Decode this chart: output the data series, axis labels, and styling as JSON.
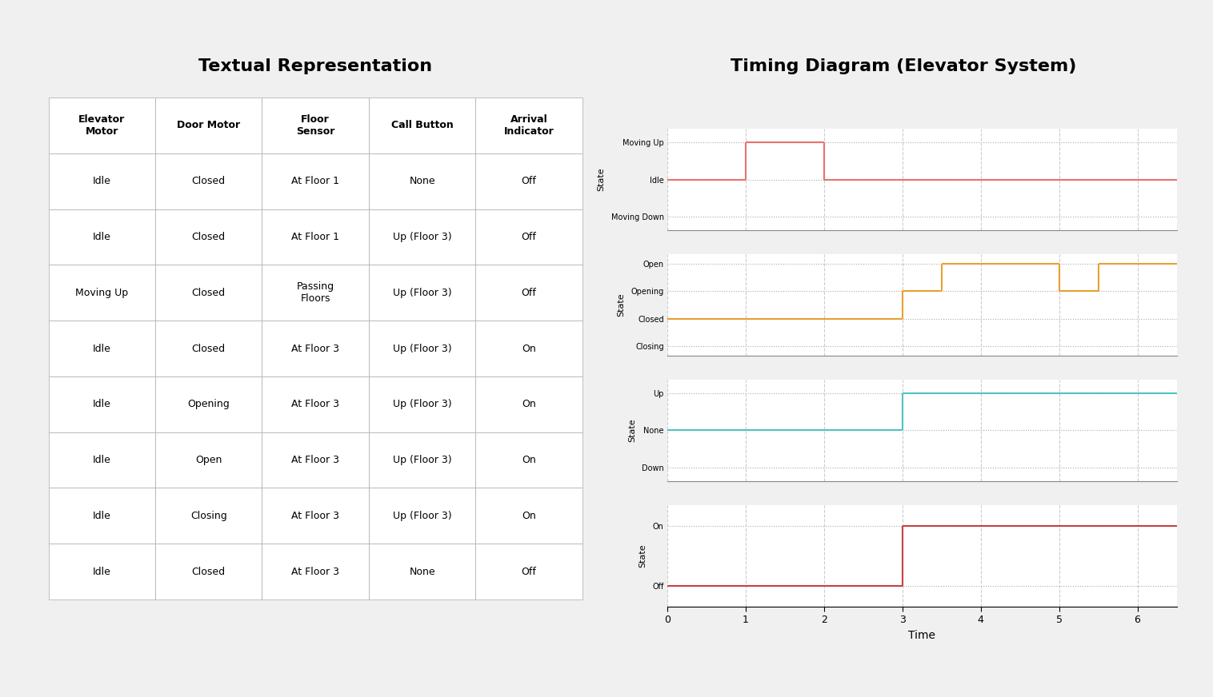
{
  "title_left": "Textual Representation",
  "title_right": "Timing Diagram (Elevator System)",
  "table_headers": [
    "Elevator\nMotor",
    "Door Motor",
    "Floor\nSensor",
    "Call Button",
    "Arrival\nIndicator"
  ],
  "table_rows": [
    [
      "Idle",
      "Closed",
      "At Floor 1",
      "None",
      "Off"
    ],
    [
      "Idle",
      "Closed",
      "At Floor 1",
      "Up (Floor 3)",
      "Off"
    ],
    [
      "Moving Up",
      "Closed",
      "Passing\nFloors",
      "Up (Floor 3)",
      "Off"
    ],
    [
      "Idle",
      "Closed",
      "At Floor 3",
      "Up (Floor 3)",
      "On"
    ],
    [
      "Idle",
      "Opening",
      "At Floor 3",
      "Up (Floor 3)",
      "On"
    ],
    [
      "Idle",
      "Open",
      "At Floor 3",
      "Up (Floor 3)",
      "On"
    ],
    [
      "Idle",
      "Closing",
      "At Floor 3",
      "Up (Floor 3)",
      "On"
    ],
    [
      "Idle",
      "Closed",
      "At Floor 3",
      "None",
      "Off"
    ]
  ],
  "timing": {
    "time_range": [
      0,
      6.5
    ],
    "time_ticks": [
      0,
      1,
      2,
      3,
      4,
      5,
      6
    ],
    "subplot1": {
      "label": "State",
      "yticks": [
        "Moving Down",
        "Idle",
        "Moving Up"
      ],
      "ytick_positions": [
        0,
        1,
        2
      ],
      "color": "#E87171",
      "segments": [
        {
          "x": [
            0,
            1
          ],
          "y": [
            1,
            1
          ]
        },
        {
          "x": [
            1,
            1
          ],
          "y": [
            1,
            2
          ]
        },
        {
          "x": [
            1,
            2
          ],
          "y": [
            2,
            2
          ]
        },
        {
          "x": [
            2,
            2
          ],
          "y": [
            2,
            1
          ]
        },
        {
          "x": [
            2,
            6.5
          ],
          "y": [
            1,
            1
          ]
        }
      ]
    },
    "subplot2": {
      "label": "State",
      "yticks": [
        "Closing",
        "Closed",
        "Opening",
        "Open"
      ],
      "ytick_positions": [
        0,
        1,
        2,
        3
      ],
      "color": "#E8A030",
      "segments": [
        {
          "x": [
            0,
            3
          ],
          "y": [
            1,
            1
          ]
        },
        {
          "x": [
            3,
            3
          ],
          "y": [
            1,
            2
          ]
        },
        {
          "x": [
            3,
            3.5
          ],
          "y": [
            2,
            2
          ]
        },
        {
          "x": [
            3.5,
            3.5
          ],
          "y": [
            2,
            3
          ]
        },
        {
          "x": [
            3.5,
            5
          ],
          "y": [
            3,
            3
          ]
        },
        {
          "x": [
            5,
            5
          ],
          "y": [
            3,
            2
          ]
        },
        {
          "x": [
            5,
            5.5
          ],
          "y": [
            2,
            2
          ]
        },
        {
          "x": [
            5.5,
            5.5
          ],
          "y": [
            2,
            3
          ]
        },
        {
          "x": [
            5.5,
            6.5
          ],
          "y": [
            3,
            3
          ]
        }
      ]
    },
    "subplot3": {
      "label": "State",
      "yticks": [
        "Down",
        "None",
        "Up"
      ],
      "ytick_positions": [
        0,
        1,
        2
      ],
      "color": "#4EC4C4",
      "segments": [
        {
          "x": [
            0,
            3
          ],
          "y": [
            1,
            1
          ]
        },
        {
          "x": [
            3,
            3
          ],
          "y": [
            1,
            2
          ]
        },
        {
          "x": [
            3,
            6.5
          ],
          "y": [
            2,
            2
          ]
        }
      ]
    },
    "subplot4": {
      "label": "State",
      "yticks": [
        "Off",
        "On"
      ],
      "ytick_positions": [
        0,
        1
      ],
      "color": "#C84040",
      "segments": [
        {
          "x": [
            0,
            3
          ],
          "y": [
            0,
            0
          ]
        },
        {
          "x": [
            3,
            3
          ],
          "y": [
            0,
            1
          ]
        },
        {
          "x": [
            3,
            6.5
          ],
          "y": [
            1,
            1
          ]
        }
      ]
    }
  },
  "background_color": "#f5f5f5",
  "grid_color": "#cccccc",
  "dot_color": "#aaaaaa"
}
